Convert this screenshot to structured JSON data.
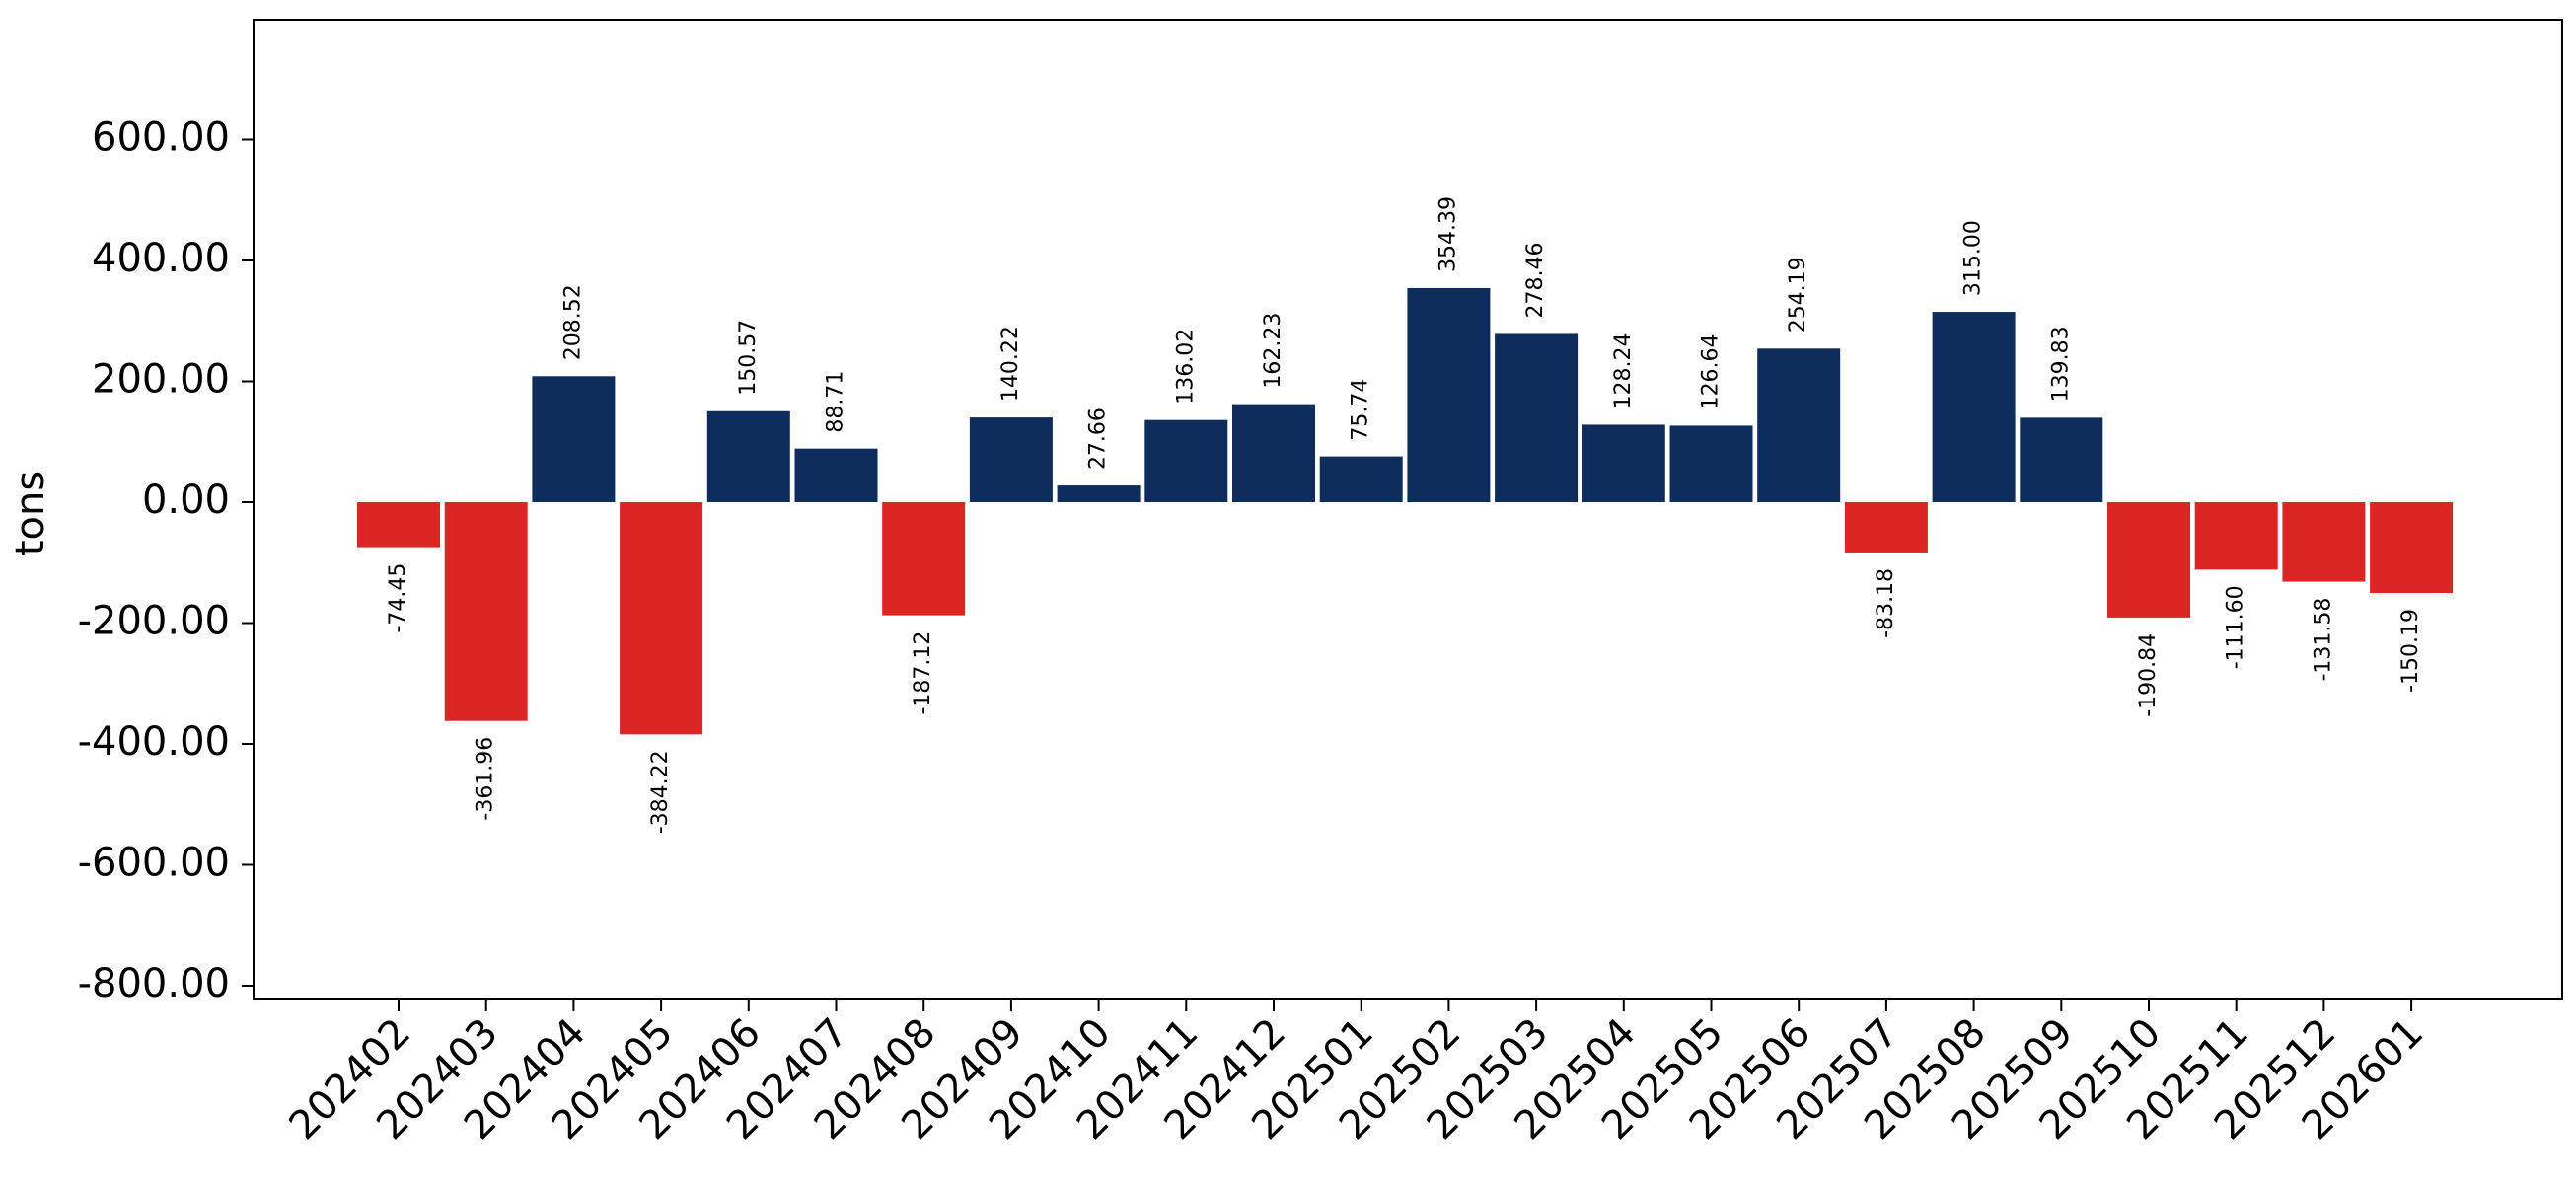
{
  "chart_data": {
    "type": "bar",
    "title": "",
    "xlabel": "",
    "ylabel": "tons",
    "categories": [
      "202402",
      "202403",
      "202404",
      "202405",
      "202406",
      "202407",
      "202408",
      "202409",
      "202410",
      "202411",
      "202412",
      "202501",
      "202502",
      "202503",
      "202504",
      "202505",
      "202506",
      "202507",
      "202508",
      "202509",
      "202510",
      "202511",
      "202512",
      "202601"
    ],
    "values": [
      -74.45,
      -361.96,
      208.52,
      -384.22,
      150.57,
      88.71,
      -187.12,
      140.22,
      27.66,
      136.02,
      162.23,
      75.74,
      354.39,
      278.46,
      128.24,
      126.64,
      254.19,
      -83.18,
      315.0,
      139.83,
      -190.84,
      -111.6,
      -131.58,
      -150.19
    ],
    "data_labels": [
      "-74.45",
      "-361.96",
      "208.52",
      "-384.22",
      "150.57",
      "88.71",
      "-187.12",
      "140.22",
      "27.66",
      "136.02",
      "162.23",
      "75.74",
      "354.39",
      "278.46",
      "128.24",
      "126.64",
      "254.19",
      "-83.18",
      "315.00",
      "139.83",
      "-190.84",
      "-111.60",
      "-131.58",
      "-150.19"
    ],
    "ylim": [
      -825,
      800
    ],
    "yticks": [
      -800,
      -600,
      -400,
      -200,
      0,
      200,
      400,
      600
    ],
    "ytick_labels": [
      "-800.00",
      "-600.00",
      "-400.00",
      "-200.00",
      "0.00",
      "200.00",
      "400.00",
      "600.00"
    ],
    "grid": false,
    "legend": "none",
    "colors": {
      "positive": "#0e2d5c",
      "negative": "#dc2626"
    }
  }
}
